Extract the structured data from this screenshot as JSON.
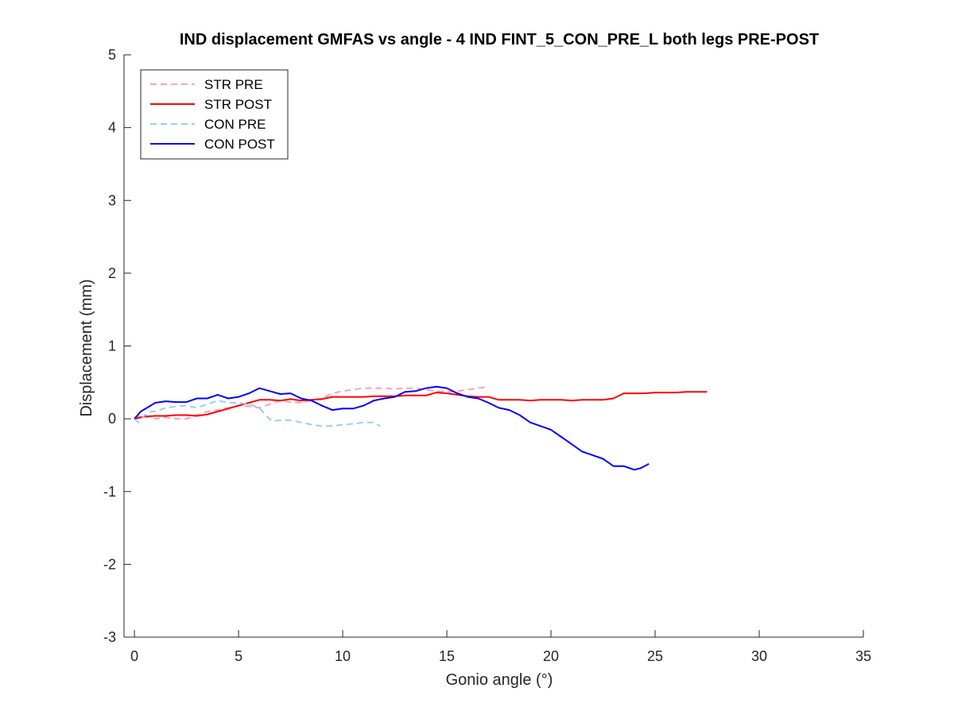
{
  "chart_data": {
    "type": "line",
    "title": "IND displacement GMFAS vs angle - 4 IND FINT_5_CON_PRE_L both legs PRE-POST",
    "xlabel": "Gonio angle (°)",
    "ylabel": "Displacement (mm)",
    "xlim": [
      -0.5,
      35
    ],
    "ylim": [
      -3,
      5
    ],
    "xticks": [
      0,
      5,
      10,
      15,
      20,
      25,
      30,
      35
    ],
    "yticks": [
      -3,
      -2,
      -1,
      0,
      1,
      2,
      3,
      4,
      5
    ],
    "grid": false,
    "legend_position": "top-left",
    "series": [
      {
        "name": "STR PRE",
        "color": "#ffa0b4",
        "dash": "dashed",
        "x": [
          0,
          0.3,
          0.6,
          1.0,
          1.5,
          2.0,
          2.5,
          3.0,
          3.5,
          4.0,
          4.5,
          5.0,
          5.5,
          6.0,
          6.5,
          7.0,
          7.5,
          8.0,
          8.5,
          9.0,
          9.5,
          10.0,
          10.5,
          11.0,
          11.5,
          12.0,
          12.5,
          13.0,
          13.5,
          14.0,
          14.5,
          15.0,
          15.5,
          16.0,
          16.5,
          17.0
        ],
        "y": [
          0,
          0.05,
          0.03,
          0.0,
          0.02,
          0.0,
          0.0,
          0.05,
          0.1,
          0.12,
          0.15,
          0.18,
          0.17,
          0.15,
          0.2,
          0.25,
          0.23,
          0.22,
          0.25,
          0.28,
          0.35,
          0.38,
          0.4,
          0.42,
          0.42,
          0.42,
          0.41,
          0.42,
          0.42,
          0.4,
          0.38,
          0.37,
          0.38,
          0.4,
          0.42,
          0.44
        ]
      },
      {
        "name": "STR POST",
        "color": "#ff0000",
        "dash": "solid",
        "x": [
          0,
          0.5,
          1.0,
          1.5,
          2.0,
          2.5,
          3.0,
          3.5,
          4.0,
          4.5,
          5.0,
          5.5,
          6.0,
          6.5,
          7.0,
          7.5,
          8.0,
          8.5,
          9.0,
          9.5,
          10.0,
          10.5,
          11.0,
          11.5,
          12.0,
          12.5,
          13.0,
          13.5,
          14.0,
          14.5,
          15.0,
          15.5,
          16.0,
          16.5,
          17.0,
          17.5,
          18.0,
          18.5,
          19.0,
          19.5,
          20.0,
          20.5,
          21.0,
          21.5,
          22.0,
          22.5,
          23.0,
          23.5,
          24.0,
          24.5,
          25.0,
          25.5,
          26.0,
          26.5,
          27.0,
          27.5
        ],
        "y": [
          0,
          0.03,
          0.04,
          0.04,
          0.05,
          0.05,
          0.04,
          0.06,
          0.1,
          0.14,
          0.18,
          0.22,
          0.26,
          0.26,
          0.25,
          0.27,
          0.25,
          0.26,
          0.27,
          0.3,
          0.3,
          0.3,
          0.3,
          0.31,
          0.31,
          0.31,
          0.32,
          0.32,
          0.32,
          0.36,
          0.35,
          0.33,
          0.31,
          0.3,
          0.3,
          0.26,
          0.26,
          0.26,
          0.25,
          0.26,
          0.26,
          0.26,
          0.25,
          0.26,
          0.26,
          0.26,
          0.28,
          0.35,
          0.35,
          0.35,
          0.36,
          0.36,
          0.36,
          0.37,
          0.37,
          0.37
        ]
      },
      {
        "name": "CON PRE",
        "color": "#99ccff",
        "dash": "dashed",
        "x": [
          0,
          0.2,
          0.5,
          0.8,
          1.0,
          1.5,
          2.0,
          2.5,
          3.0,
          3.5,
          4.0,
          4.5,
          5.0,
          5.5,
          6.0,
          6.3,
          6.6,
          7.0,
          7.5,
          8.0,
          8.5,
          9.0,
          9.5,
          10.0,
          10.5,
          11.0,
          11.5,
          11.8
        ],
        "y": [
          0,
          -0.05,
          0.05,
          0.1,
          0.1,
          0.15,
          0.17,
          0.18,
          0.15,
          0.2,
          0.25,
          0.22,
          0.22,
          0.2,
          0.15,
          0.05,
          -0.03,
          -0.02,
          -0.02,
          -0.05,
          -0.08,
          -0.1,
          -0.1,
          -0.08,
          -0.07,
          -0.05,
          -0.05,
          -0.1
        ]
      },
      {
        "name": "CON POST",
        "color": "#0000ff",
        "dash": "solid",
        "x": [
          0,
          0.3,
          0.6,
          1.0,
          1.5,
          2.0,
          2.5,
          3.0,
          3.5,
          4.0,
          4.5,
          5.0,
          5.5,
          6.0,
          6.5,
          7.0,
          7.5,
          8.0,
          8.5,
          9.0,
          9.5,
          10.0,
          10.5,
          11.0,
          11.5,
          12.0,
          12.5,
          13.0,
          13.5,
          14.0,
          14.5,
          15.0,
          15.5,
          16.0,
          16.5,
          17.0,
          17.5,
          18.0,
          18.5,
          19.0,
          19.5,
          20.0,
          20.5,
          21.0,
          21.5,
          22.0,
          22.5,
          23.0,
          23.5,
          24.0,
          24.3,
          24.7
        ],
        "y": [
          0,
          0.1,
          0.15,
          0.22,
          0.24,
          0.23,
          0.23,
          0.28,
          0.28,
          0.33,
          0.28,
          0.3,
          0.35,
          0.42,
          0.38,
          0.34,
          0.35,
          0.28,
          0.25,
          0.18,
          0.12,
          0.14,
          0.14,
          0.18,
          0.25,
          0.28,
          0.3,
          0.37,
          0.38,
          0.42,
          0.44,
          0.42,
          0.35,
          0.3,
          0.28,
          0.22,
          0.15,
          0.12,
          0.05,
          -0.05,
          -0.1,
          -0.15,
          -0.25,
          -0.35,
          -0.45,
          -0.5,
          -0.55,
          -0.65,
          -0.65,
          -0.7,
          -0.68,
          -0.62
        ]
      }
    ]
  }
}
